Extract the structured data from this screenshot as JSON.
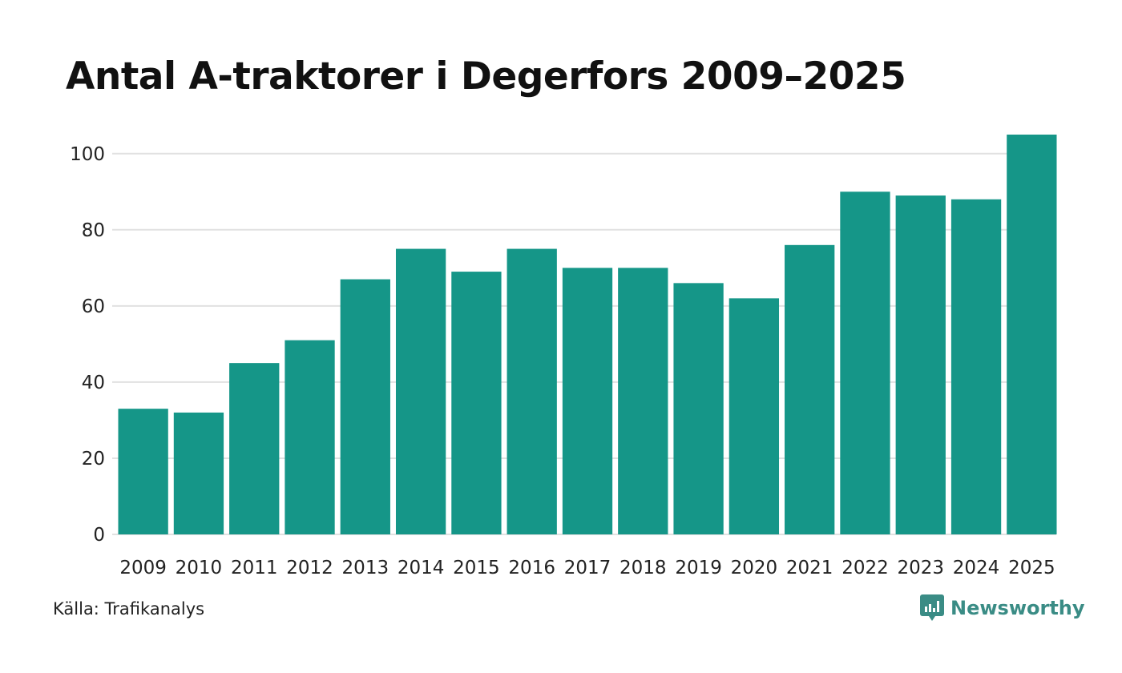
{
  "title": "Antal A-traktorer i Degerfors 2009–2025",
  "source": "Källa: Trafikanalys",
  "brand": {
    "name": "Newsworthy",
    "icon": "newsworthy-logo-icon",
    "color": "#3a8c85"
  },
  "colors": {
    "bar": "#159688",
    "grid": "#e1e1e1",
    "text": "#111111"
  },
  "chart_data": {
    "type": "bar",
    "title": "Antal A-traktorer i Degerfors 2009–2025",
    "xlabel": "",
    "ylabel": "",
    "categories": [
      "2009",
      "2010",
      "2011",
      "2012",
      "2013",
      "2014",
      "2015",
      "2016",
      "2017",
      "2018",
      "2019",
      "2020",
      "2021",
      "2022",
      "2023",
      "2024",
      "2025"
    ],
    "values": [
      33,
      32,
      45,
      51,
      67,
      75,
      69,
      75,
      70,
      70,
      66,
      62,
      76,
      90,
      89,
      88,
      105
    ],
    "ylim": [
      0,
      105
    ],
    "yticks": [
      0,
      20,
      40,
      60,
      80,
      100
    ],
    "grid": true,
    "legend": "none"
  }
}
